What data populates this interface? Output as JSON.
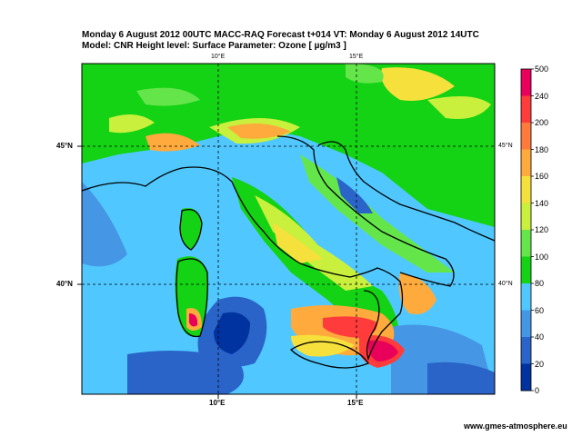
{
  "header": {
    "line1": "Monday 6 August 2012 00UTC MACC-RAQ Forecast t+014 VT: Monday 6 August 2012 14UTC",
    "line2": "Model: CNR  Height level: Surface  Parameter: Ozone [ µg/m3 ]"
  },
  "axes": {
    "lon_top": [
      "10°E",
      "15°E"
    ],
    "lon_bottom": [
      "10°E",
      "15°E"
    ],
    "lat_left": [
      "45°N",
      "40°N"
    ],
    "lat_right": [
      "45°N",
      "40°N"
    ]
  },
  "colorbar": {
    "levels": [
      "500",
      "240",
      "200",
      "180",
      "160",
      "140",
      "120",
      "100",
      "80",
      "60",
      "40",
      "20",
      "0"
    ],
    "colors": [
      "#e8005a",
      "#ff3b3b",
      "#ff7a3b",
      "#ffaa3c",
      "#f6e03c",
      "#c8f03c",
      "#64e64b",
      "#14d214",
      "#50c8ff",
      "#4696e6",
      "#2a64c8",
      "#0032a0"
    ]
  },
  "credit": "www.gmes-atmosphere.eu"
}
